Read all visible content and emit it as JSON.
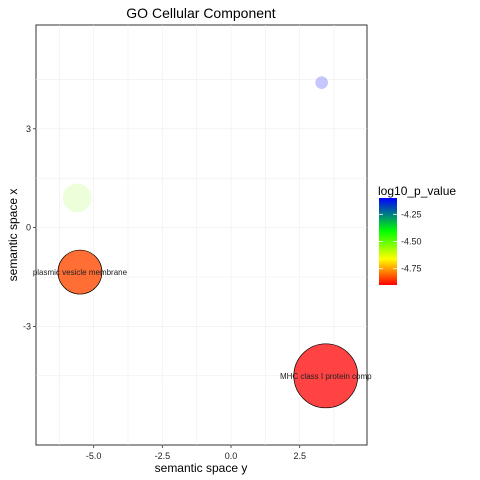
{
  "chart_data": {
    "type": "scatter",
    "title": "GO Cellular Component",
    "xlabel": "semantic space y",
    "ylabel": "semantic space x",
    "xlim": [
      -7.1,
      4.95
    ],
    "ylim": [
      -6.6,
      6.15
    ],
    "x_ticks": [
      -5.0,
      -2.5,
      0.0,
      2.5
    ],
    "x_tick_labels": [
      "-5.0",
      "-2.5",
      "0.0",
      "2.5"
    ],
    "y_ticks": [
      -3,
      0,
      3
    ],
    "y_tick_labels": [
      "-3",
      "0",
      "3"
    ],
    "grid": true,
    "legend": {
      "title": "log10_p_value",
      "position": "right",
      "ticks": [
        -4.25,
        -4.5,
        -4.75
      ],
      "tick_labels": [
        "-4.25",
        "-4.50",
        "-4.75"
      ],
      "range": [
        -4.9,
        -4.1
      ],
      "colors": [
        "#ff0000",
        "#ffff00",
        "#00ff00",
        "#0000ff"
      ]
    },
    "points": [
      {
        "x": 3.3,
        "y": 4.4,
        "log10_p_value": -4.1,
        "color": "#9999ff",
        "label": ""
      },
      {
        "x": -5.6,
        "y": 0.9,
        "log10_p_value": -4.4,
        "color": "#ddffbb",
        "label": ""
      },
      {
        "x": -5.5,
        "y": -1.35,
        "log10_p_value": -4.85,
        "color": "#ff5511",
        "label": "plasmic vesicle membrane"
      },
      {
        "x": 3.45,
        "y": -4.5,
        "log10_p_value": -4.9,
        "color": "#ff2222",
        "label": "MHC class I protein comp"
      }
    ]
  }
}
